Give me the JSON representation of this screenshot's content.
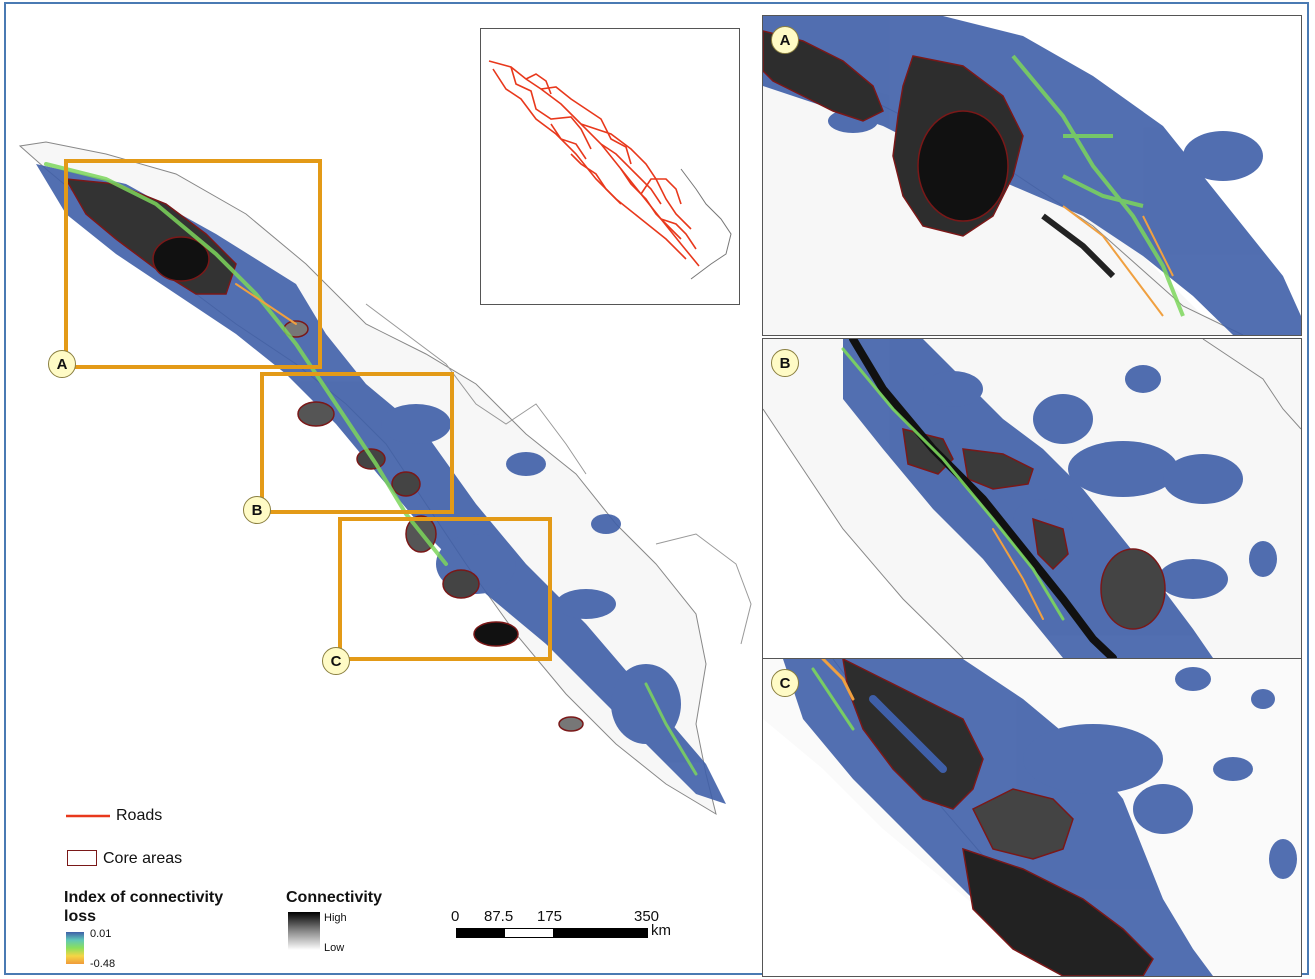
{
  "markers": {
    "a": "A",
    "b": "B",
    "c": "C"
  },
  "legend": {
    "roads": "Roads",
    "core_areas": "Core areas",
    "index_title": "Index of connectivity loss",
    "index_max": "0.01",
    "index_min": "-0.48",
    "connectivity_title": "Connectivity",
    "connectivity_high": "High",
    "connectivity_low": "Low"
  },
  "scale_bar": {
    "t0": "0",
    "t1": "87.5",
    "t2": "175",
    "t3": "350",
    "unit": "km"
  },
  "colors": {
    "frame": "#4a7ab3",
    "box": "#e39a17",
    "road": "#e8381c",
    "core_outline": "#7a1818",
    "corridor_blue": "#3f5fa8",
    "loss_green": "#7cd65c",
    "loss_orange": "#f0a040"
  }
}
